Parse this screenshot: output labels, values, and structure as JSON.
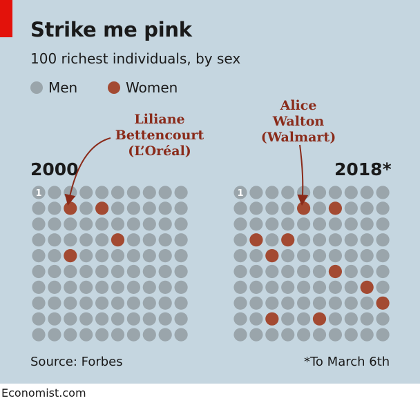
{
  "title": "Strike me pink",
  "subtitle": "100 richest individuals, by sex",
  "legend": [
    {
      "label": "Men",
      "color": "#9aa5ab"
    },
    {
      "label": "Women",
      "color": "#a34a32"
    }
  ],
  "colors": {
    "background": "#c5d6e0",
    "men": "#9aa5ab",
    "women": "#a34a32",
    "accent_tag": "#e3120b",
    "annotation": "#8a2b1a"
  },
  "chart_data": {
    "type": "waffle",
    "title": "Strike me pink",
    "subtitle": "100 richest individuals, by sex",
    "grid": {
      "rows": 10,
      "cols": 10,
      "order": "row-major, rank 1 top-left"
    },
    "first_rank_label": "1",
    "panels": [
      {
        "label": "2000",
        "total": 100,
        "men": 96,
        "women": 4,
        "women_ranks": [
          13,
          15,
          36,
          43
        ],
        "annotation": {
          "lines": [
            "Liliane",
            "Bettencourt",
            "(L’Oréal)"
          ],
          "rank": 13
        }
      },
      {
        "label": "2018*",
        "total": 100,
        "men": 90,
        "women": 10,
        "women_ranks": [
          15,
          17,
          32,
          34,
          43,
          57,
          69,
          80,
          83,
          86
        ],
        "annotation": {
          "lines": [
            "Alice",
            "Walton",
            "(Walmart)"
          ],
          "rank": 15
        }
      }
    ]
  },
  "source": "Source: Forbes",
  "footnote": "*To March 6th",
  "brand": "Economist.com"
}
